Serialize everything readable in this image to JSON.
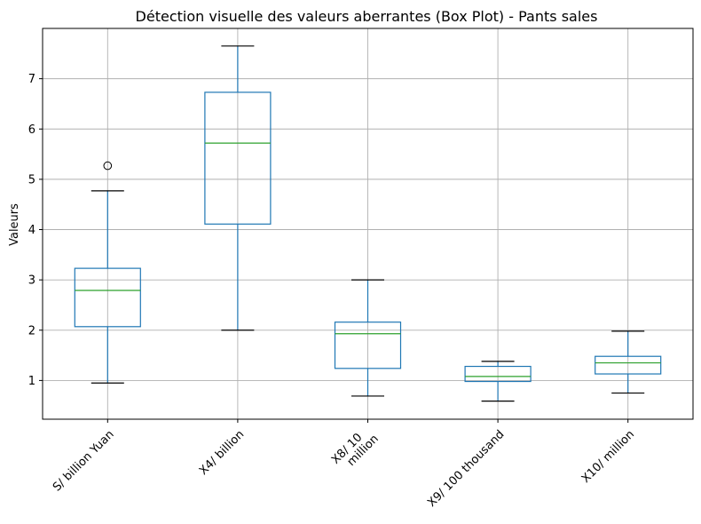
{
  "chart_data": {
    "type": "box",
    "title": "Détection visuelle des valeurs aberrantes (Box Plot) - Pants sales",
    "xlabel": "",
    "ylabel": "Valeurs",
    "ylim": [
      0.23,
      8.0
    ],
    "yticks": [
      1,
      2,
      3,
      4,
      5,
      6,
      7
    ],
    "grid": true,
    "colors": {
      "box": "#1f77b4",
      "median": "#2ca02c",
      "whisker_cap": "#000000",
      "grid": "#b0b0b0"
    },
    "categories": [
      {
        "label_lines": [
          "S/ billion Yuan"
        ]
      },
      {
        "label_lines": [
          "X4/ billion"
        ]
      },
      {
        "label_lines": [
          "X8/ 10",
          "million"
        ]
      },
      {
        "label_lines": [
          "X9/ 100 thousand"
        ]
      },
      {
        "label_lines": [
          "X10/ million"
        ]
      }
    ],
    "boxes": [
      {
        "whislo": 0.95,
        "q1": 2.07,
        "med": 2.79,
        "q3": 3.23,
        "whishi": 4.77,
        "fliers": [
          5.27
        ]
      },
      {
        "whislo": 2.0,
        "q1": 4.11,
        "med": 5.72,
        "q3": 6.73,
        "whishi": 7.65,
        "fliers": []
      },
      {
        "whislo": 0.69,
        "q1": 1.24,
        "med": 1.93,
        "q3": 2.16,
        "whishi": 3.0,
        "fliers": []
      },
      {
        "whislo": 0.59,
        "q1": 0.98,
        "med": 1.08,
        "q3": 1.28,
        "whishi": 1.38,
        "fliers": []
      },
      {
        "whislo": 0.75,
        "q1": 1.13,
        "med": 1.35,
        "q3": 1.48,
        "whishi": 1.98,
        "fliers": []
      }
    ]
  }
}
